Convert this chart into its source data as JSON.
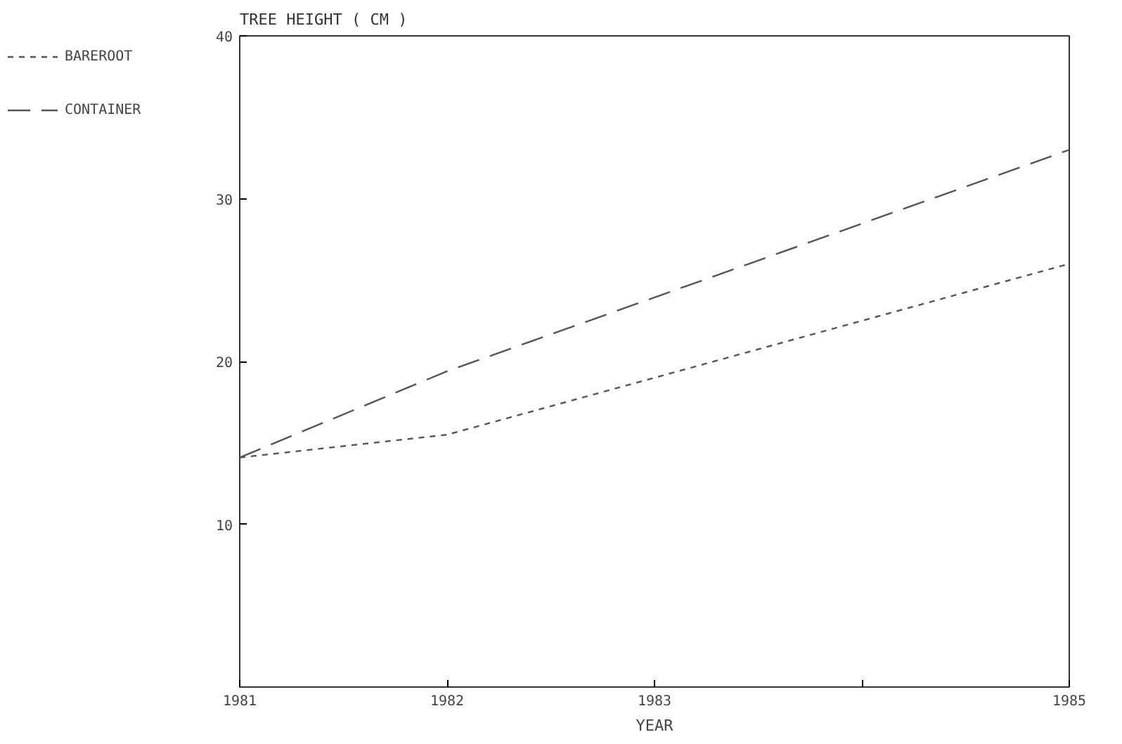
{
  "chart_data": {
    "type": "line",
    "title": "TREE HEIGHT ( CM )",
    "xlabel": "YEAR",
    "x": [
      1981,
      1982,
      1985
    ],
    "series": [
      {
        "name": "BAREROOT",
        "color": "#555555",
        "line_style": "dotted",
        "values": [
          14.1,
          15.5,
          26.0
        ]
      },
      {
        "name": "CONTAINER",
        "color": "#555555",
        "line_style": "dashed",
        "values": [
          14.1,
          19.4,
          33.0
        ]
      }
    ],
    "xlim": [
      1981,
      1985
    ],
    "xticks": [
      1981,
      1982,
      1983,
      {
        "value": 1984,
        "label": null
      },
      1985
    ],
    "ylim": [
      0,
      40
    ],
    "yticks": [
      10,
      20,
      30,
      40
    ],
    "grid": false,
    "legend": "left",
    "marker": "none"
  }
}
